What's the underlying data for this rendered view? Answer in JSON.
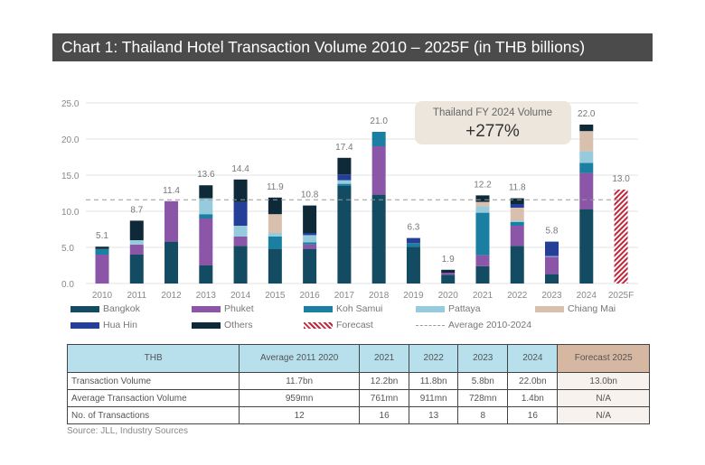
{
  "title": "Chart 1: Thailand Hotel Transaction Volume 2010 – 2025F (in THB billions)",
  "callout": {
    "line1": "Thailand FY 2024 Volume",
    "line2": "+277%"
  },
  "chart_data": {
    "type": "bar",
    "stacked": true,
    "categories": [
      "2010",
      "2011",
      "2012",
      "2013",
      "2014",
      "2015",
      "2016",
      "2017",
      "2018",
      "2019",
      "2020",
      "2021",
      "2022",
      "2023",
      "2024",
      "2025F"
    ],
    "ylim": [
      0,
      25
    ],
    "yticks": [
      "0.0",
      "5.0",
      "10.0",
      "15.0",
      "20.0",
      "25.0"
    ],
    "grid": true,
    "totals": [
      "5.1",
      "8.7",
      "11.4",
      "13.6",
      "14.4",
      "11.9",
      "10.8",
      "17.4",
      "21.0",
      "6.3",
      "1.9",
      "12.2",
      "11.8",
      "5.8",
      "22.0",
      "13.0"
    ],
    "series": [
      {
        "name": "Bangkok",
        "color": "#134b63",
        "values": [
          0,
          4.0,
          5.8,
          2.5,
          5.2,
          4.8,
          4.8,
          13.5,
          12.3,
          5.1,
          1.2,
          2.4,
          5.2,
          1.3,
          10.3,
          0
        ]
      },
      {
        "name": "Phuket",
        "color": "#8b55a8",
        "values": [
          4.0,
          1.4,
          5.6,
          6.5,
          1.3,
          0,
          0.6,
          0,
          6.7,
          0,
          0.3,
          1.5,
          2.8,
          2.4,
          5.0,
          0
        ]
      },
      {
        "name": "Koh Samui",
        "color": "#1a7fa0",
        "values": [
          0.8,
          0,
          0,
          0.6,
          0,
          1.7,
          0.3,
          0.3,
          2.0,
          0.5,
          0,
          5.9,
          0.5,
          0,
          1.4,
          0
        ]
      },
      {
        "name": "Pattaya",
        "color": "#95cbdc",
        "values": [
          0,
          0.6,
          0,
          2.2,
          1.5,
          0.5,
          1.0,
          0.5,
          0,
          0,
          0,
          0.9,
          0.2,
          0.1,
          1.6,
          0
        ]
      },
      {
        "name": "Chiang Mai",
        "color": "#d9bfae",
        "values": [
          0,
          0,
          0,
          0,
          0,
          2.6,
          0,
          0,
          0,
          0,
          0,
          0.6,
          1.8,
          0,
          2.8,
          0
        ]
      },
      {
        "name": "Hua Hin",
        "color": "#243f98",
        "values": [
          0,
          0,
          0,
          0,
          3.3,
          0,
          0.3,
          0.8,
          0,
          0.7,
          0,
          0,
          0.5,
          2.0,
          0,
          0
        ]
      },
      {
        "name": "Others",
        "color": "#0e2a38",
        "values": [
          0.3,
          2.7,
          0,
          1.8,
          3.1,
          2.3,
          3.8,
          2.3,
          0,
          0,
          0.4,
          0.9,
          0.8,
          0,
          0.9,
          0
        ]
      },
      {
        "name": "Forecast",
        "color": "#c0253a",
        "pattern": "hatched",
        "values": [
          0,
          0,
          0,
          0,
          0,
          0,
          0,
          0,
          0,
          0,
          0,
          0,
          0,
          0,
          0,
          13.0
        ]
      }
    ],
    "average": {
      "name": "Average 2010-2024",
      "value": 11.6,
      "style": "dashed",
      "color": "#999999"
    },
    "legend_placement": "bottom"
  },
  "table": {
    "headers": [
      "THB",
      "Average 2011 2020",
      "2021",
      "2022",
      "2023",
      "2024",
      "Forecast 2025"
    ],
    "rows": [
      [
        "Transaction Volume",
        "11.7bn",
        "12.2bn",
        "11.8bn",
        "5.8bn",
        "22.0bn",
        "13.0bn"
      ],
      [
        "Average Transaction Volume",
        "959mn",
        "761mn",
        "911mn",
        "728mn",
        "1.4bn",
        "N/A"
      ],
      [
        "No. of Transactions",
        "12",
        "16",
        "13",
        "8",
        "16",
        "N/A"
      ]
    ]
  },
  "source": "Source: JLL, Industry Sources"
}
